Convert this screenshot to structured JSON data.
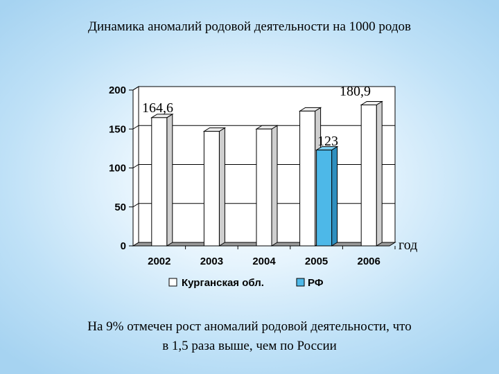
{
  "title": "Динамика аномалий родовой деятельности на 1000 родов",
  "footer": {
    "line1": "На 9% отмечен рост аномалий родовой деятельности, что",
    "line2": "в 1,5 раза выше, чем по России"
  },
  "colors": {
    "kurgan": "#ffffff",
    "rf": "#4db8e8",
    "axis": "#000000"
  },
  "chart_data": {
    "type": "bar",
    "categories": [
      "2002",
      "2003",
      "2004",
      "2005",
      "2006"
    ],
    "series": [
      {
        "name": "Курганская обл.",
        "values": [
          164.6,
          147,
          150,
          173,
          180.9
        ],
        "color": "#ffffff"
      },
      {
        "name": "РФ",
        "values": [
          null,
          null,
          null,
          123,
          null
        ],
        "color": "#4db8e8"
      }
    ],
    "data_labels": [
      {
        "text": "164,6",
        "category": "2002",
        "series": "Курганская обл."
      },
      {
        "text": "180,9",
        "category": "2006",
        "series": "Курганская обл."
      },
      {
        "text": "123",
        "category": "2005",
        "series": "РФ"
      }
    ],
    "yticks": [
      0,
      50,
      100,
      150,
      200
    ],
    "ylim": [
      0,
      200
    ],
    "xlabel": "год",
    "ylabel": "",
    "grid": true,
    "legend": "bottom",
    "title": "Динамика аномалий родовой деятельности на 1000 родов"
  }
}
